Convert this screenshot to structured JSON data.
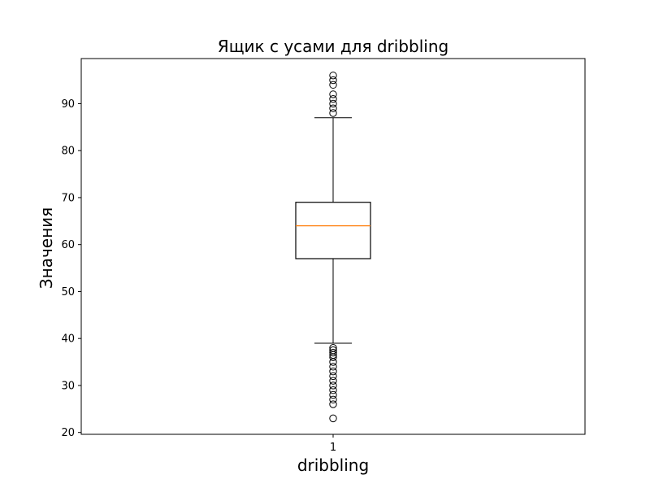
{
  "chart_data": {
    "type": "box",
    "title": "Ящик с усами для dribbling",
    "xlabel": "dribbling",
    "ylabel": "Значения",
    "categories": [
      "1"
    ],
    "ylim": [
      19.6,
      99.6
    ],
    "yticks": [
      20,
      30,
      40,
      50,
      60,
      70,
      80,
      90
    ],
    "grid": false,
    "legend": "none",
    "box": {
      "q1": 57,
      "median": 64,
      "q3": 69,
      "whisker_low": 39,
      "whisker_high": 87,
      "outliers_high": [
        88,
        89,
        90,
        91,
        92,
        94,
        95,
        96
      ],
      "outliers_low": [
        38,
        37.5,
        37,
        36.5,
        36,
        35,
        34,
        33,
        32,
        31,
        30,
        29,
        28,
        27,
        26,
        23
      ]
    },
    "colors": {
      "box": "#000000",
      "median": "#ff7f0e",
      "outlier_edge": "#000000"
    }
  }
}
